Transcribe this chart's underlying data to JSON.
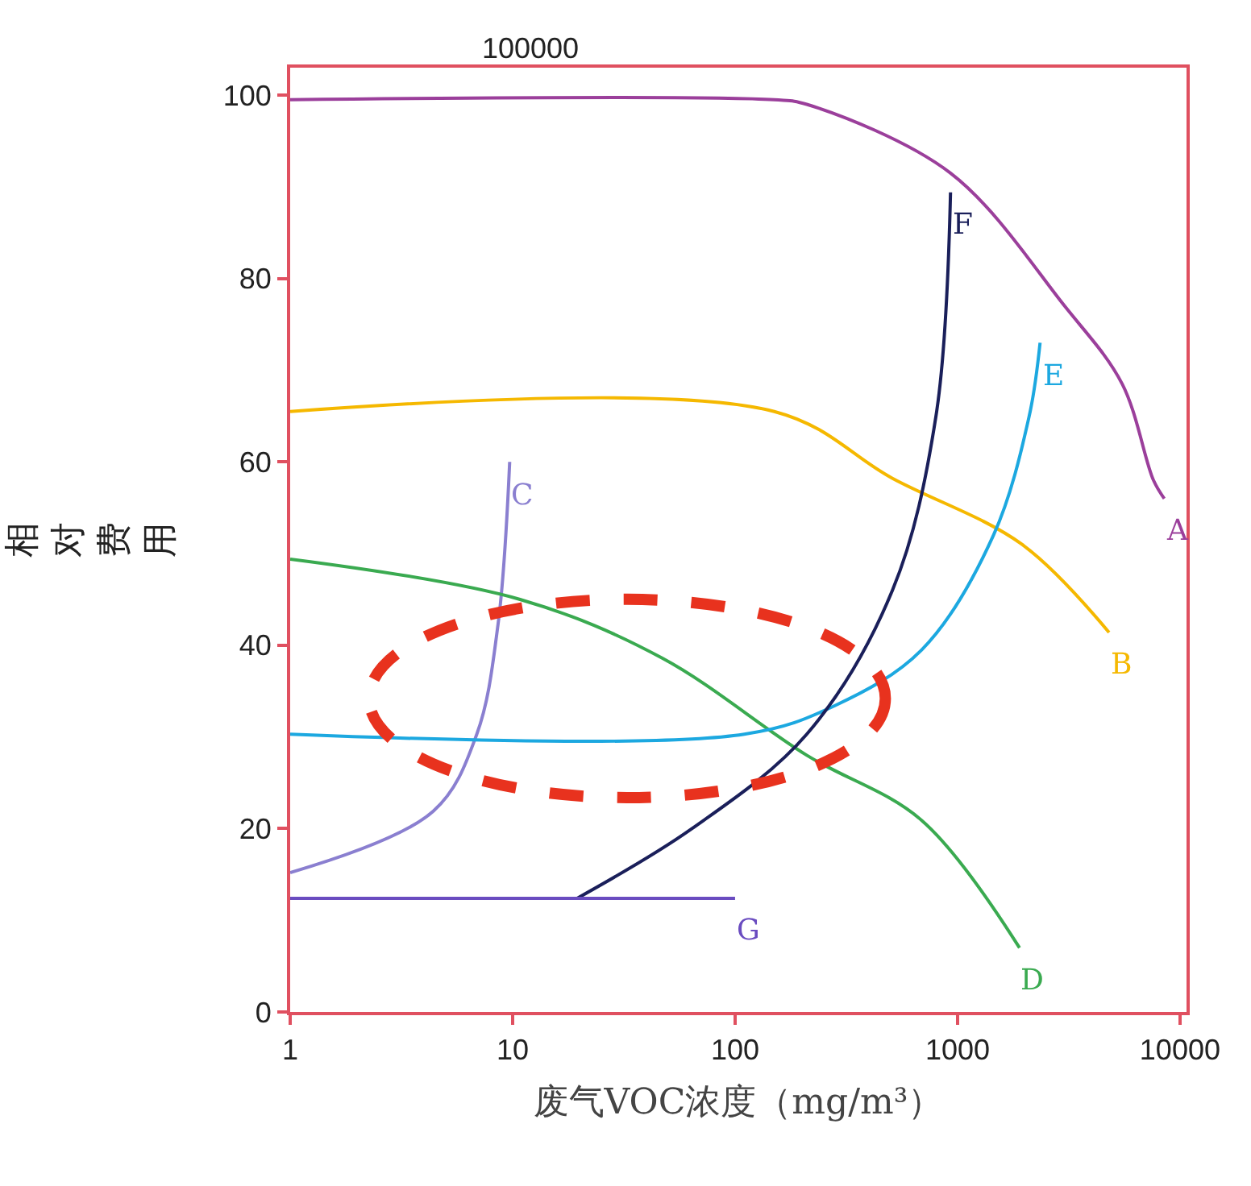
{
  "chart_data": {
    "type": "line",
    "xlabel": "废气VOC浓度（mg/m³）",
    "ylabel": "相对费用",
    "log": "x",
    "xlim": [
      1,
      10700
    ],
    "ylim": [
      0,
      103
    ],
    "xticks": [
      1,
      10,
      100,
      1000,
      10000
    ],
    "yticks": [
      0,
      20,
      40,
      60,
      80,
      100
    ],
    "legend": false,
    "marker": "none",
    "line_style": "solid",
    "annotations": [
      "100000"
    ],
    "series": [
      {
        "name": "A",
        "color": "#9b3f9b",
        "x": [
          1,
          150,
          210,
          930,
          3030,
          5500,
          7600,
          8500
        ],
        "values": [
          99.5,
          99.5,
          99,
          91.5,
          77,
          68.5,
          58,
          56
        ]
      },
      {
        "name": "B",
        "color": "#f5b800",
        "x": [
          1,
          150,
          510,
          1950,
          4800
        ],
        "values": [
          65.5,
          65.5,
          58.2,
          51,
          41.4
        ]
      },
      {
        "name": "C",
        "color": "#8a7fd0",
        "x": [
          1,
          4.4,
          6.9,
          8.6,
          9.7
        ],
        "values": [
          15.2,
          21.9,
          30.3,
          42.3,
          60
        ]
      },
      {
        "name": "D",
        "color": "#3aaa50",
        "x": [
          1,
          10.8,
          47,
          210,
          690,
          1900
        ],
        "values": [
          49.4,
          45,
          38.6,
          28,
          20.9,
          7
        ]
      },
      {
        "name": "E",
        "color": "#1ca8e0",
        "x": [
          1,
          110,
          280,
          690,
          1450,
          2100,
          2350
        ],
        "values": [
          30.3,
          30.3,
          33.4,
          39.5,
          52,
          65,
          73
        ]
      },
      {
        "name": "F",
        "color": "#1a1f5a",
        "x": [
          19.5,
          64,
          210,
          510,
          800,
          930
        ],
        "values": [
          12.4,
          20,
          30.3,
          46,
          65,
          89.4
        ]
      },
      {
        "name": "G",
        "color": "#6a4cc0",
        "x": [
          1,
          100
        ],
        "values": [
          12.4,
          12.4
        ]
      }
    ]
  }
}
